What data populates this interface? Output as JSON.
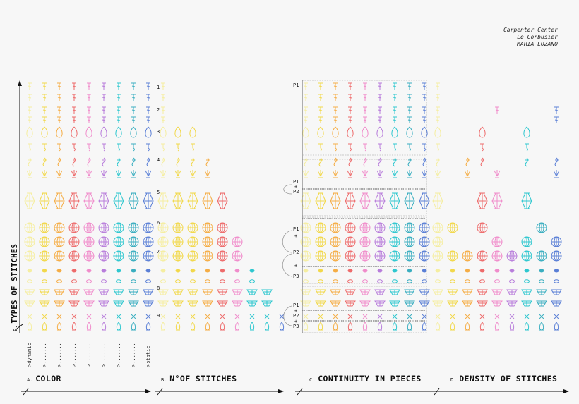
{
  "credits": [
    "Carpenter Center",
    "Le Corbusier",
    "MARIA LOZANO"
  ],
  "y_axis": {
    "letter": "E.",
    "label": "TYPES OF STITCHES"
  },
  "sections": [
    {
      "letter": "A.",
      "label": "COLOR"
    },
    {
      "letter": "B.",
      "label": "N°OF STITCHES"
    },
    {
      "letter": "C.",
      "label": "CONTINUITY IN PIECES"
    },
    {
      "letter": "D.",
      "label": "DENSITY OF STITCHES"
    }
  ],
  "column_labels": [
    ">dynamic",
    ">.......",
    ">.......",
    ">.......",
    ">.......",
    ">.......",
    ">.......",
    ">.......",
    ">static"
  ],
  "row_numbers": [
    "1",
    "2",
    "3",
    "4",
    "5",
    "6",
    "7",
    "8",
    "9"
  ],
  "piece_labels": {
    "p1_top": "P1",
    "group_a": [
      "P1",
      "+",
      "P2"
    ],
    "group_b": [
      "P1",
      "+",
      "P2",
      "+",
      "P3"
    ],
    "group_c": [
      "P1",
      "+",
      "P2",
      "+",
      "P3"
    ]
  },
  "palette": {
    "faint": "#f5eea0",
    "yellow": "#f2d84a",
    "orange": "#f5ad45",
    "red": "#ee6b6b",
    "pink": "#f08ccb",
    "violet": "#b87ddb",
    "cyan": "#2ec7cf",
    "teal": "#3aaec0",
    "blue": "#5a7fd6"
  }
}
